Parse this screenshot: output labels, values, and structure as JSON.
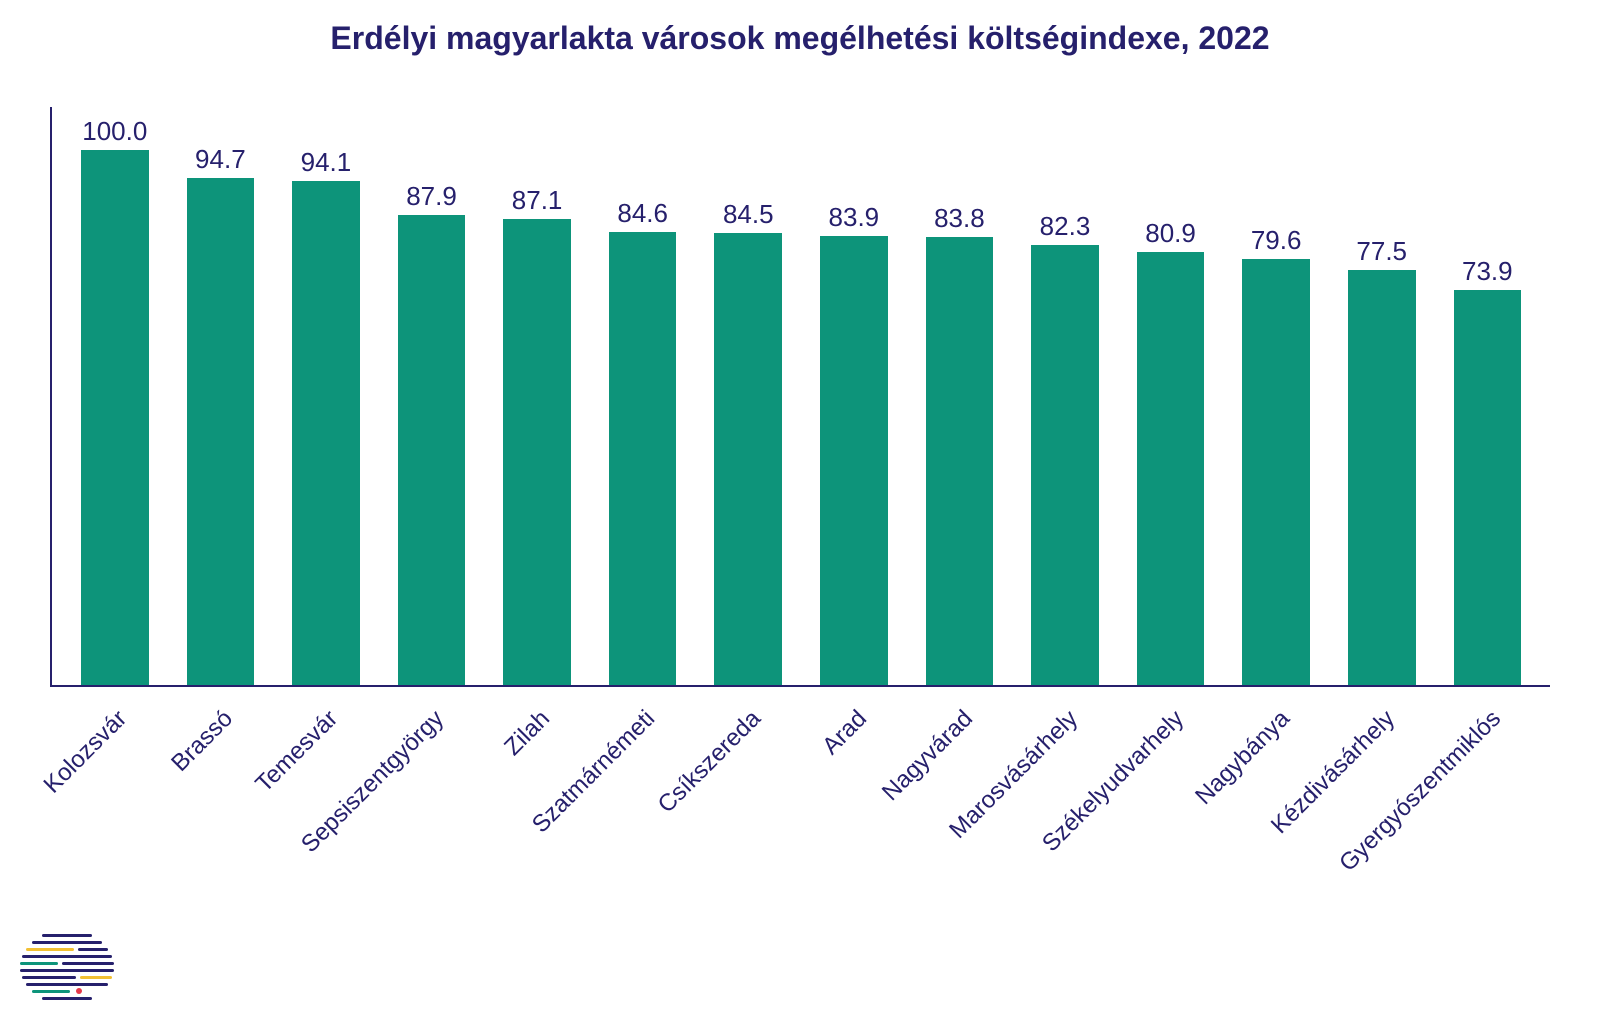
{
  "chart": {
    "type": "bar",
    "title": "Erdélyi magyarlakta városok megélhetési költségindexe, 2022",
    "title_color": "#26206c",
    "title_fontsize": 32,
    "bar_color": "#0d947a",
    "axis_color": "#26206c",
    "value_label_color": "#26206c",
    "value_label_fontsize": 26,
    "x_label_color": "#26206c",
    "x_label_fontsize": 24,
    "background_color": "#ffffff",
    "ylim_max": 108,
    "bar_width_ratio": 0.64,
    "categories": [
      "Kolozsvár",
      "Brassó",
      "Temesvár",
      "Sepsiszentgyörgy",
      "Zilah",
      "Szatmárnémeti",
      "Csíkszereda",
      "Arad",
      "Nagyvárad",
      "Marosvásárhely",
      "Székelyudvarhely",
      "Nagybánya",
      "Kézdivásárhely",
      "Gyergyószentmiklós"
    ],
    "values": [
      100.0,
      94.7,
      94.1,
      87.9,
      87.1,
      84.6,
      84.5,
      83.9,
      83.8,
      82.3,
      80.9,
      79.6,
      77.5,
      73.9
    ],
    "value_labels": [
      "100.0",
      "94.7",
      "94.1",
      "87.9",
      "87.1",
      "84.6",
      "84.5",
      "83.9",
      "83.8",
      "82.3",
      "80.9",
      "79.6",
      "77.5",
      "73.9"
    ]
  },
  "logo": {
    "dot_color": "#e6394a",
    "line_colors": [
      "#26206c",
      "#f2c033",
      "#0d947a",
      "#26206c",
      "#f2c033",
      "#0d947a",
      "#26206c",
      "#f2c033",
      "#26206c",
      "#0d947a"
    ]
  }
}
